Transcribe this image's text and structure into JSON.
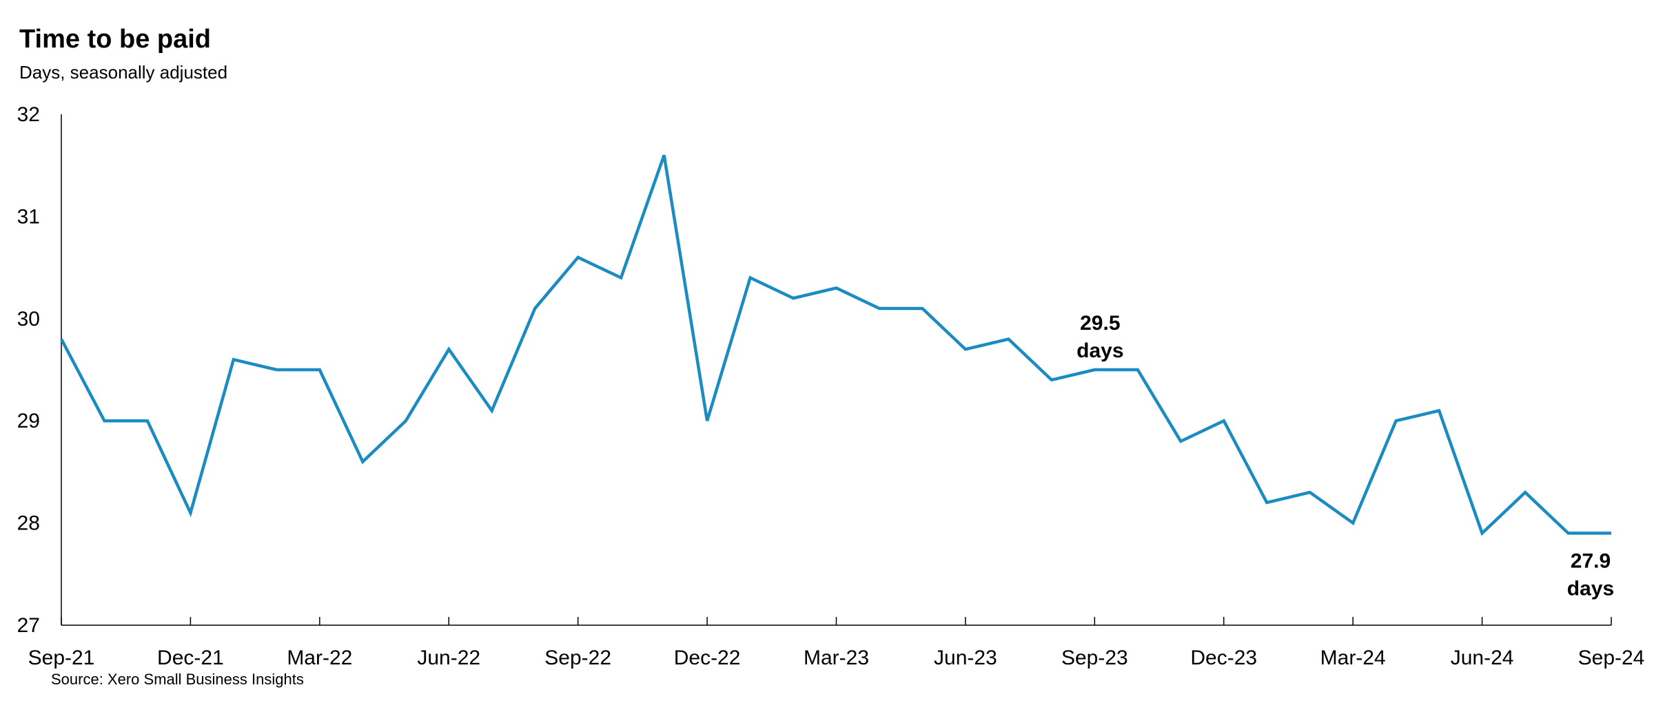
{
  "header": {
    "title": "Time to be paid",
    "subtitle": "Days, seasonally adjusted"
  },
  "footer": {
    "source": "Source: Xero Small Business Insights"
  },
  "colors": {
    "line": "#1a8cc1",
    "axis": "#000000"
  },
  "chart_data": {
    "type": "line",
    "title": "Time to be paid",
    "subtitle": "Days, seasonally adjusted",
    "xlabel": "",
    "ylabel": "Days",
    "ylim": [
      27,
      32
    ],
    "yticks": [
      27,
      28,
      29,
      30,
      31,
      32
    ],
    "xtick_labels": [
      "Sep-21",
      "Dec-21",
      "Mar-22",
      "Jun-22",
      "Sep-22",
      "Dec-22",
      "Mar-23",
      "Jun-23",
      "Sep-23",
      "Dec-23",
      "Mar-24",
      "Jun-24",
      "Sep-24"
    ],
    "grid": false,
    "legend": null,
    "x": [
      "Sep-21",
      "Oct-21",
      "Nov-21",
      "Dec-21",
      "Jan-22",
      "Feb-22",
      "Mar-22",
      "Apr-22",
      "May-22",
      "Jun-22",
      "Jul-22",
      "Aug-22",
      "Sep-22",
      "Oct-22",
      "Nov-22",
      "Dec-22",
      "Jan-23",
      "Feb-23",
      "Mar-23",
      "Apr-23",
      "May-23",
      "Jun-23",
      "Jul-23",
      "Aug-23",
      "Sep-23",
      "Oct-23",
      "Nov-23",
      "Dec-23",
      "Jan-24",
      "Feb-24",
      "Mar-24",
      "Apr-24",
      "May-24",
      "Jun-24",
      "Jul-24",
      "Aug-24",
      "Sep-24"
    ],
    "series": [
      {
        "name": "Time to be paid",
        "values": [
          29.8,
          29.0,
          29.0,
          28.1,
          29.6,
          29.5,
          29.5,
          28.6,
          29.0,
          29.7,
          29.1,
          30.1,
          30.6,
          30.4,
          31.6,
          29.0,
          30.4,
          30.2,
          30.3,
          30.1,
          30.1,
          29.7,
          29.8,
          29.4,
          29.5,
          29.5,
          28.8,
          29.0,
          28.2,
          28.3,
          28.0,
          29.0,
          29.1,
          27.9,
          28.3,
          27.9,
          27.9
        ]
      }
    ],
    "annotations": [
      {
        "x": "Sep-23",
        "value": 29.5,
        "line1": "29.5",
        "line2": "days",
        "position": "above"
      },
      {
        "x": "Sep-24",
        "value": 27.9,
        "line1": "27.9",
        "line2": "days",
        "position": "below"
      }
    ]
  }
}
